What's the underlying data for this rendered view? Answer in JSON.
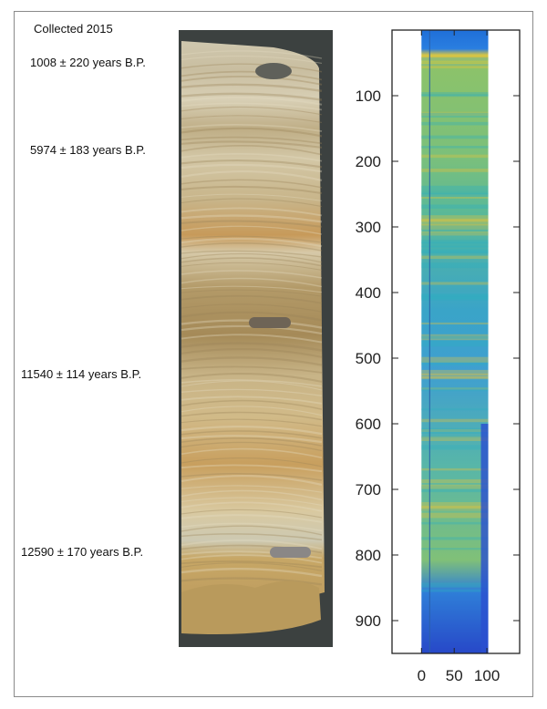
{
  "figure": {
    "collected_label": "Collected 2015",
    "dates": [
      {
        "label": "1008 ± 220 years B.P."
      },
      {
        "label": "5974 ± 183 years B.P."
      },
      {
        "label": "11540 ± 114 years B.P."
      },
      {
        "label": "12590 ± 170 years B.P."
      }
    ]
  },
  "chart_data": {
    "type": "heatmap",
    "title": "",
    "xlabel": "",
    "ylabel": "",
    "xlim": [
      -45,
      150
    ],
    "ylim": [
      0,
      950
    ],
    "y_inverted": true,
    "xticks": [
      0,
      50,
      100
    ],
    "yticks": [
      100,
      200,
      300,
      400,
      500,
      600,
      700,
      800,
      900
    ],
    "image_x_range": [
      0,
      102
    ],
    "colormap": "parula",
    "colors": {
      "low": "#2a4fd0",
      "mid": "#2fb0c0",
      "high": "#e8c43a"
    }
  }
}
